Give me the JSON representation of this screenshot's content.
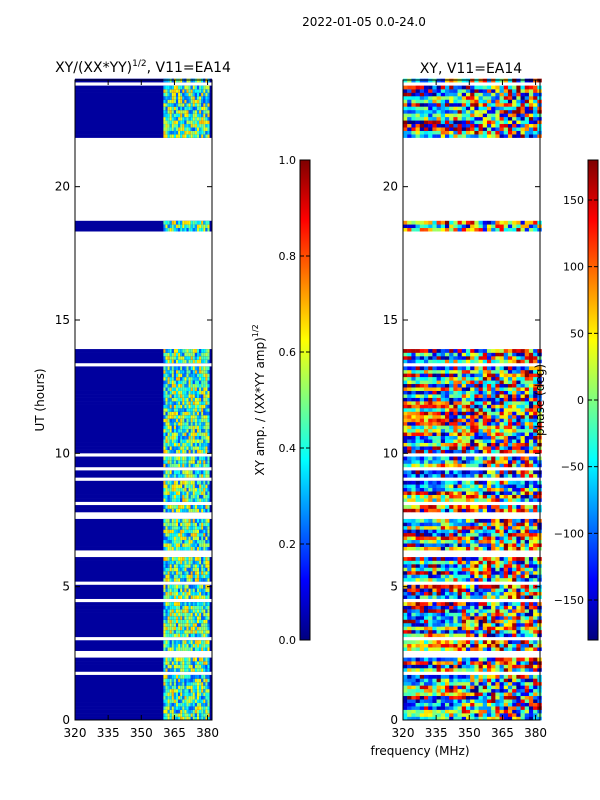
{
  "suptitle": "2022-01-05 0.0-24.0",
  "xlabel": "frequency (MHz)",
  "colors": {
    "background": "#00007f",
    "jet_stops": [
      "#00007f",
      "#0000ff",
      "#007fff",
      "#00ffff",
      "#7fff7f",
      "#ffff00",
      "#ff7f00",
      "#ff0000",
      "#7f0000"
    ]
  },
  "chart_data": [
    {
      "type": "heatmap",
      "title": "XY/(XX*YY)",
      "title_exponent": "1/2",
      "title_suffix": ", V11=EA14",
      "xlabel": "",
      "ylabel": "UT (hours)",
      "xlim": [
        320,
        382
      ],
      "ylim": [
        0,
        24
      ],
      "xticks": [
        320,
        335,
        350,
        365,
        380
      ],
      "yticks": [
        0,
        5,
        10,
        15,
        20
      ],
      "colorbar": {
        "label": "XY amp. / (XX*YY amp)",
        "label_exponent": "1/2",
        "range": [
          0.0,
          1.0
        ],
        "ticks": [
          "0.0",
          "0.2",
          "0.4",
          "0.6",
          "0.8",
          "1.0"
        ],
        "tick_values": [
          0.0,
          0.2,
          0.4,
          0.6,
          0.8,
          1.0
        ]
      },
      "gaps_ut_hours": [
        [
          13.85,
          18.3
        ],
        [
          18.7,
          21.8
        ]
      ],
      "active_band_mhz": [
        360,
        380
      ],
      "active_band_typical_value": 0.45,
      "background_value": 0.03
    },
    {
      "type": "heatmap",
      "title": "XY, V11=EA14",
      "xlabel": "",
      "ylabel": "",
      "xlim": [
        320,
        382
      ],
      "ylim": [
        0,
        24
      ],
      "xticks": [
        320,
        335,
        350,
        365,
        380
      ],
      "yticks": [
        0,
        5,
        10,
        15,
        20
      ],
      "colorbar": {
        "label": "phase (deg)",
        "range": [
          -180,
          180
        ],
        "ticks": [
          "−150",
          "−100",
          "−50",
          "0",
          "50",
          "100",
          "150"
        ],
        "tick_values": [
          -150,
          -100,
          -50,
          0,
          50,
          100,
          150
        ]
      },
      "gaps_ut_hours": [
        [
          13.85,
          18.3
        ],
        [
          18.7,
          21.8
        ]
      ]
    }
  ]
}
